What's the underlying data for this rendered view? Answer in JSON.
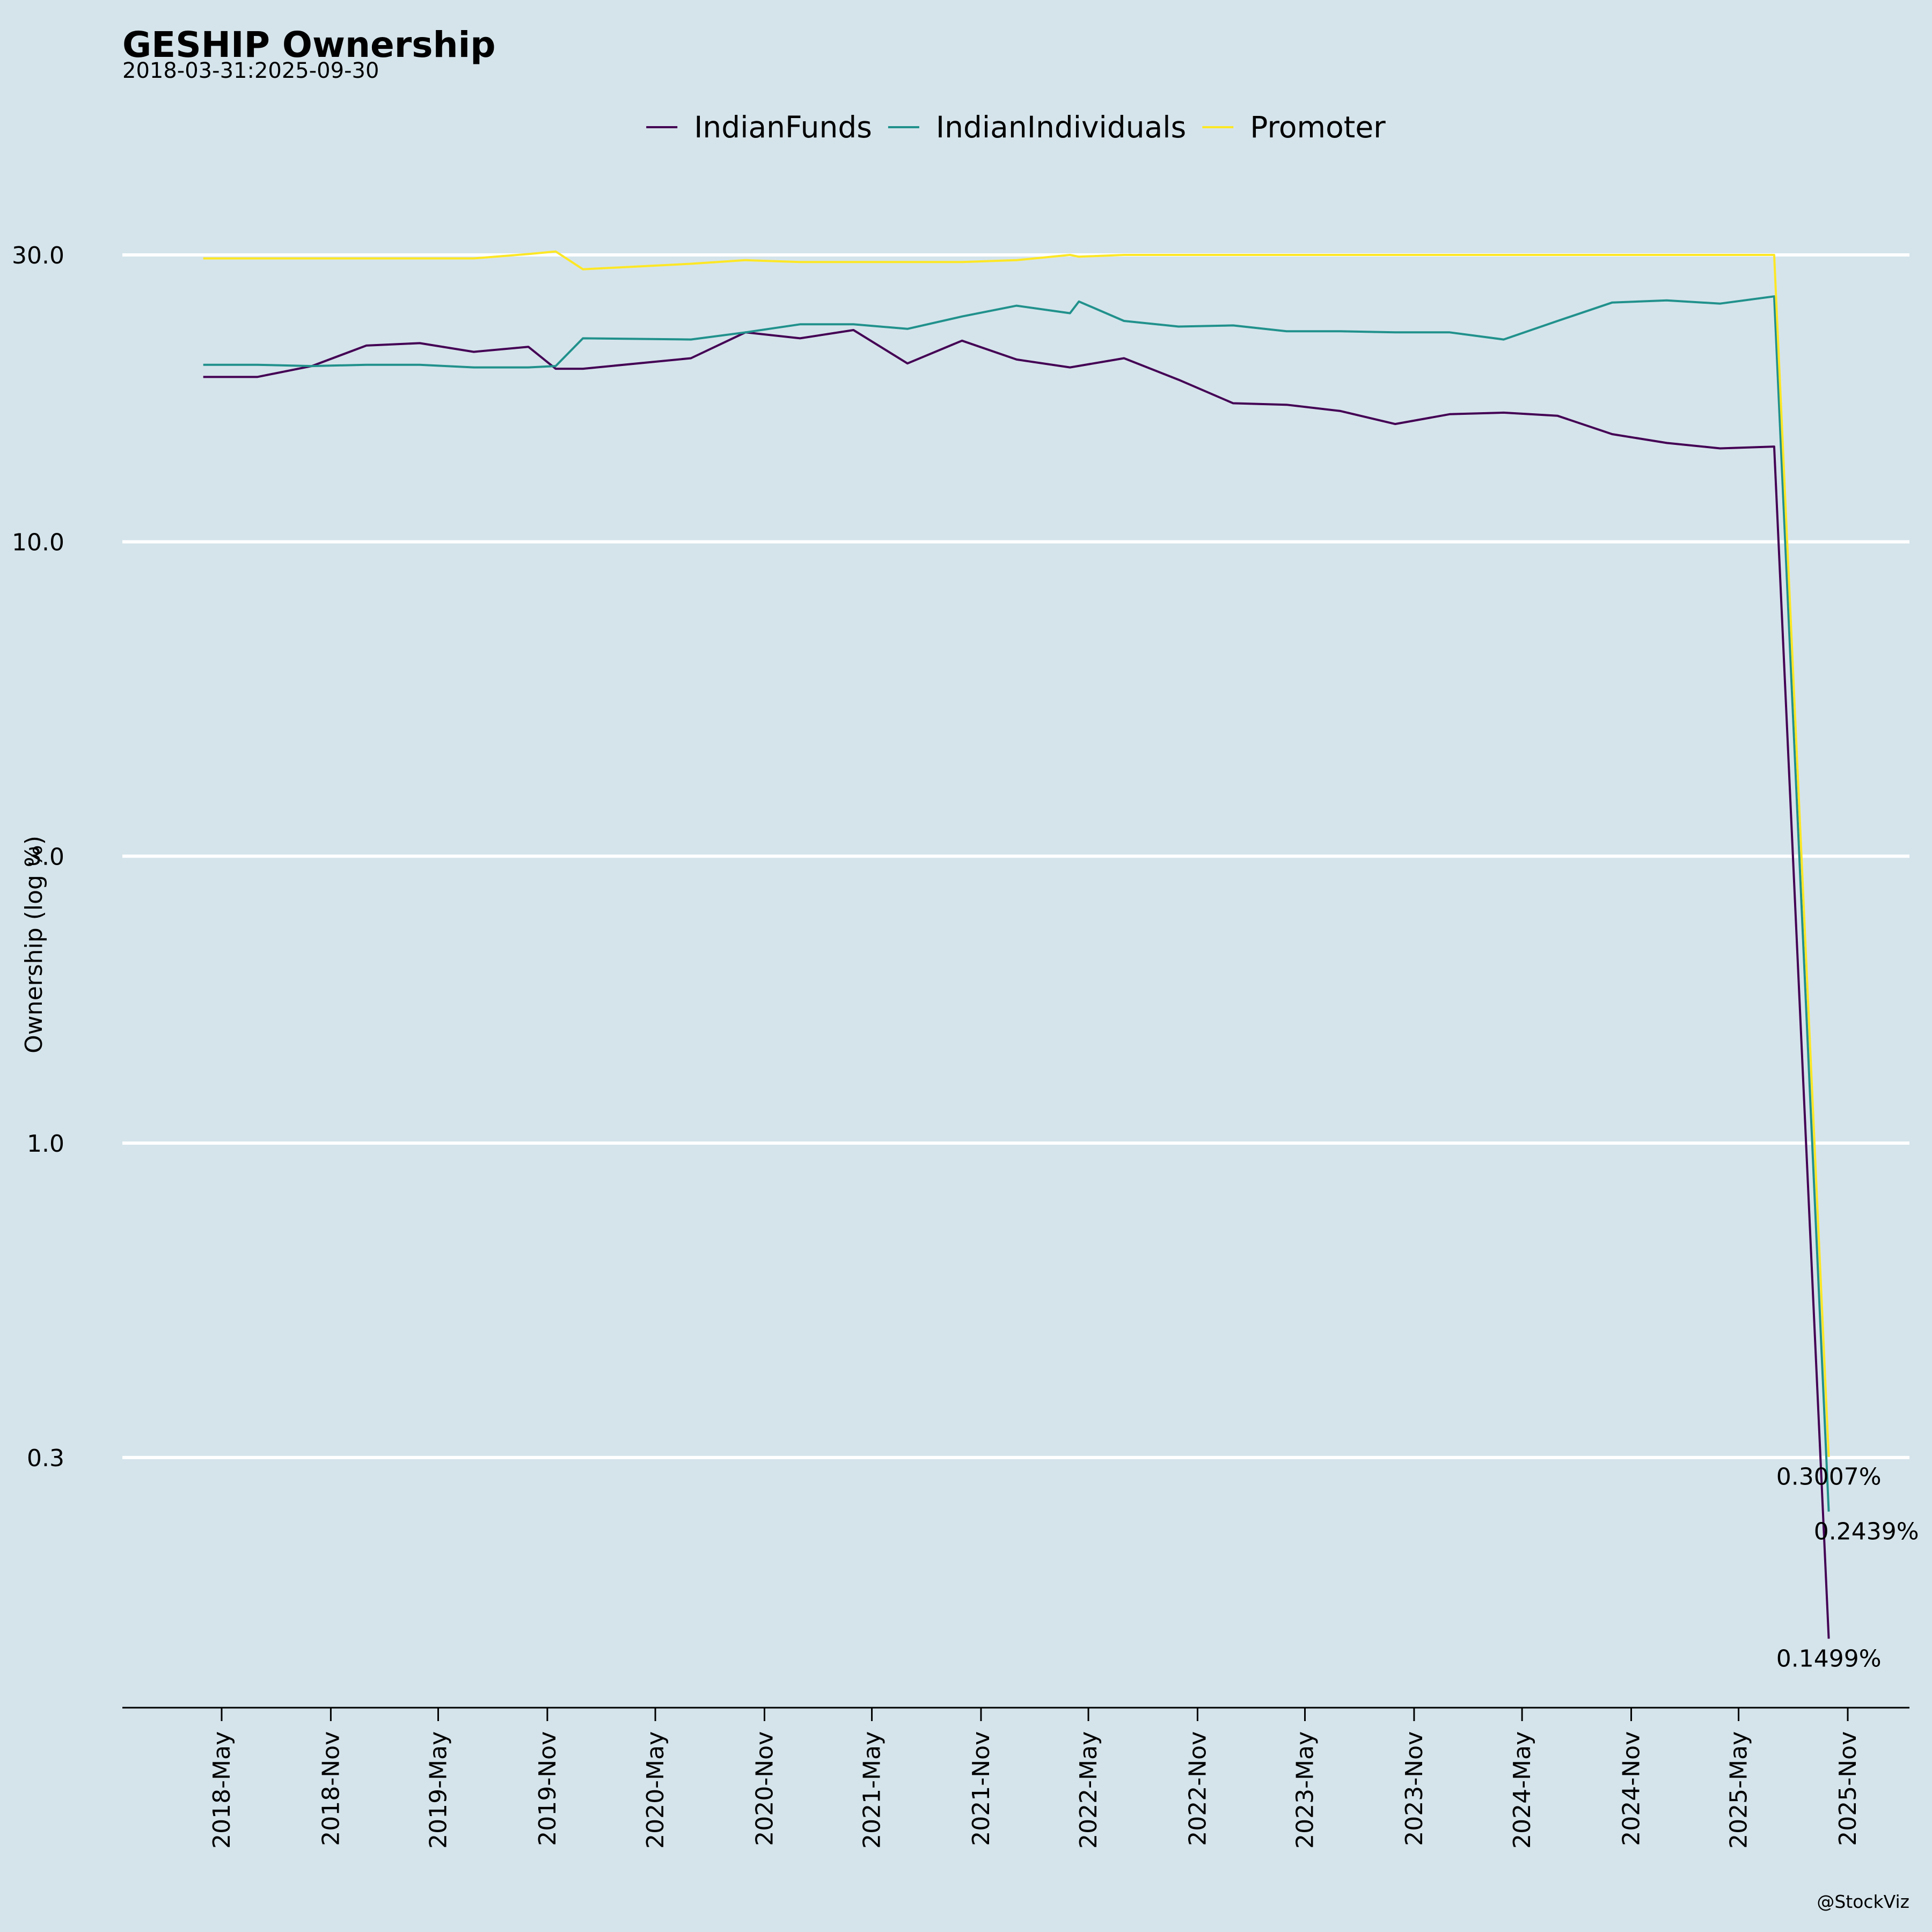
{
  "chart_data": {
    "type": "line",
    "title": "GESHIP Ownership",
    "subtitle": "2018-03-31:2025-09-30",
    "xlabel": "",
    "ylabel": "Ownership (log %)",
    "yscale": "log",
    "ylim": [
      0.13,
      45
    ],
    "y_ticks": [
      {
        "value": 30,
        "label": "30.0"
      },
      {
        "value": 10,
        "label": "10.0"
      },
      {
        "value": 3,
        "label": "3.0"
      },
      {
        "value": 1,
        "label": "1.0"
      },
      {
        "value": 0.3,
        "label": "0.3"
      }
    ],
    "x_ticks": [
      "2018-May",
      "2018-Nov",
      "2019-May",
      "2019-Nov",
      "2020-May",
      "2020-Nov",
      "2021-May",
      "2021-Nov",
      "2022-May",
      "2022-Nov",
      "2023-May",
      "2023-Nov",
      "2024-May",
      "2024-Nov",
      "2025-May",
      "2025-Nov"
    ],
    "grid": "horizontal",
    "legend_position": "top-center",
    "credit": "@StockViz",
    "series": [
      {
        "name": "IndianFunds",
        "color": "#440154",
        "end_label": "0.1499%",
        "points": [
          [
            "2018-03-31",
            18.8
          ],
          [
            "2018-06-30",
            18.8
          ],
          [
            "2018-09-30",
            19.6
          ],
          [
            "2018-12-31",
            21.2
          ],
          [
            "2019-03-31",
            21.4
          ],
          [
            "2019-06-30",
            20.7
          ],
          [
            "2019-09-30",
            21.1
          ],
          [
            "2019-11-15",
            19.4
          ],
          [
            "2019-12-31",
            19.4
          ],
          [
            "2020-06-30",
            20.2
          ],
          [
            "2020-09-30",
            22.3
          ],
          [
            "2020-12-31",
            21.8
          ],
          [
            "2021-03-31",
            22.5
          ],
          [
            "2021-06-30",
            19.8
          ],
          [
            "2021-09-30",
            21.6
          ],
          [
            "2021-12-31",
            20.1
          ],
          [
            "2022-03-31",
            19.5
          ],
          [
            "2022-06-30",
            20.2
          ],
          [
            "2022-09-30",
            18.6
          ],
          [
            "2022-12-31",
            17.0
          ],
          [
            "2023-03-31",
            16.9
          ],
          [
            "2023-06-30",
            16.5
          ],
          [
            "2023-09-30",
            15.7
          ],
          [
            "2023-12-31",
            16.3
          ],
          [
            "2024-03-31",
            16.4
          ],
          [
            "2024-06-30",
            16.2
          ],
          [
            "2024-09-30",
            15.1
          ],
          [
            "2024-12-31",
            14.6
          ],
          [
            "2025-03-31",
            14.3
          ],
          [
            "2025-06-30",
            14.4
          ],
          [
            "2025-09-30",
            0.1499
          ]
        ]
      },
      {
        "name": "IndianIndividuals",
        "color": "#21918c",
        "end_label": "0.2439%",
        "points": [
          [
            "2018-03-31",
            19.7
          ],
          [
            "2018-06-30",
            19.7
          ],
          [
            "2018-09-30",
            19.6
          ],
          [
            "2018-12-31",
            19.7
          ],
          [
            "2019-03-31",
            19.7
          ],
          [
            "2019-06-30",
            19.5
          ],
          [
            "2019-09-30",
            19.5
          ],
          [
            "2019-11-15",
            19.6
          ],
          [
            "2019-12-31",
            21.8
          ],
          [
            "2020-06-30",
            21.7
          ],
          [
            "2020-09-30",
            22.3
          ],
          [
            "2020-12-31",
            23.0
          ],
          [
            "2021-03-31",
            23.0
          ],
          [
            "2021-06-30",
            22.6
          ],
          [
            "2021-09-30",
            23.7
          ],
          [
            "2021-12-31",
            24.7
          ],
          [
            "2022-03-31",
            24.0
          ],
          [
            "2022-04-15",
            25.1
          ],
          [
            "2022-06-30",
            23.3
          ],
          [
            "2022-09-30",
            22.8
          ],
          [
            "2022-12-31",
            22.9
          ],
          [
            "2023-03-31",
            22.4
          ],
          [
            "2023-06-30",
            22.4
          ],
          [
            "2023-09-30",
            22.3
          ],
          [
            "2023-12-31",
            22.3
          ],
          [
            "2024-03-31",
            21.7
          ],
          [
            "2024-06-30",
            23.3
          ],
          [
            "2024-09-30",
            25.0
          ],
          [
            "2024-12-31",
            25.2
          ],
          [
            "2025-03-31",
            24.9
          ],
          [
            "2025-06-30",
            25.6
          ],
          [
            "2025-09-30",
            0.2439
          ]
        ]
      },
      {
        "name": "Promoter",
        "color": "#fde725",
        "end_label": "0.3007%",
        "points": [
          [
            "2018-03-31",
            29.6
          ],
          [
            "2018-06-30",
            29.6
          ],
          [
            "2018-09-30",
            29.6
          ],
          [
            "2018-12-31",
            29.6
          ],
          [
            "2019-03-31",
            29.6
          ],
          [
            "2019-06-30",
            29.6
          ],
          [
            "2019-09-30",
            30.1
          ],
          [
            "2019-11-15",
            30.4
          ],
          [
            "2019-12-31",
            28.4
          ],
          [
            "2020-06-30",
            29.0
          ],
          [
            "2020-09-30",
            29.4
          ],
          [
            "2020-12-31",
            29.2
          ],
          [
            "2021-03-31",
            29.2
          ],
          [
            "2021-06-30",
            29.2
          ],
          [
            "2021-09-30",
            29.2
          ],
          [
            "2021-12-31",
            29.4
          ],
          [
            "2022-03-31",
            30.0
          ],
          [
            "2022-04-15",
            29.8
          ],
          [
            "2022-06-30",
            30.0
          ],
          [
            "2022-09-30",
            30.0
          ],
          [
            "2022-12-31",
            30.0
          ],
          [
            "2023-03-31",
            30.0
          ],
          [
            "2023-06-30",
            30.0
          ],
          [
            "2023-09-30",
            30.0
          ],
          [
            "2023-12-31",
            30.0
          ],
          [
            "2024-03-31",
            30.0
          ],
          [
            "2024-06-30",
            30.0
          ],
          [
            "2024-09-30",
            30.0
          ],
          [
            "2024-12-31",
            30.0
          ],
          [
            "2025-03-31",
            30.0
          ],
          [
            "2025-06-30",
            30.0
          ],
          [
            "2025-09-30",
            0.3007
          ]
        ]
      }
    ]
  }
}
